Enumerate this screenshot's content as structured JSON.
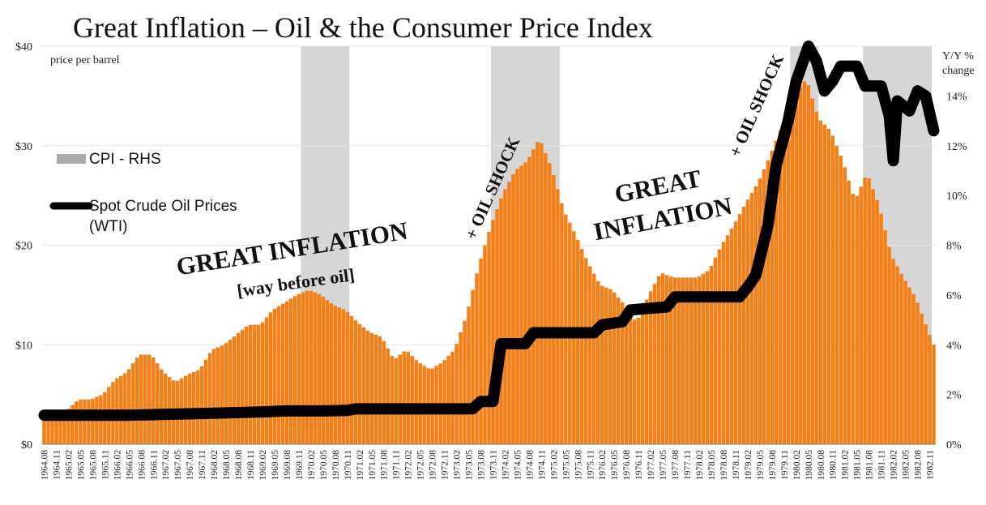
{
  "chart_data": {
    "type": "bar",
    "title": "Great Inflation – Oil & the Consumer Price Index",
    "left_axis_label": "price per barrel",
    "right_axis_label_line1": "Y/Y %",
    "right_axis_label_line2": "change",
    "left_ylim": [
      0,
      40
    ],
    "right_ylim": [
      0,
      16
    ],
    "left_ticks": [
      "$0",
      "$10",
      "$20",
      "$30",
      "$40"
    ],
    "left_tick_values": [
      0,
      10,
      20,
      30,
      40
    ],
    "right_ticks": [
      "0%",
      "2%",
      "4%",
      "6%",
      "8%",
      "10%",
      "12%",
      "14%"
    ],
    "right_tick_values": [
      0,
      2,
      4,
      6,
      8,
      10,
      12,
      14
    ],
    "x_start": "1964.08",
    "x_end": "1983.01",
    "x_tick_labels": [
      "1964.08",
      "1964.11",
      "1965.02",
      "1965.05",
      "1965.08",
      "1965.11",
      "1966.02",
      "1966.05",
      "1966.08",
      "1966.11",
      "1967.02",
      "1967.05",
      "1967.08",
      "1967.11",
      "1968.02",
      "1968.05",
      "1968.08",
      "1968.11",
      "1969.02",
      "1969.05",
      "1969.08",
      "1969.11",
      "1970.02",
      "1970.05",
      "1970.08",
      "1970.11",
      "1971.02",
      "1971.05",
      "1971.08",
      "1971.11",
      "1972.02",
      "1972.05",
      "1972.08",
      "1972.11",
      "1973.02",
      "1973.05",
      "1973.08",
      "1973.11",
      "1974.02",
      "1974.05",
      "1974.08",
      "1974.11",
      "1975.02",
      "1975.05",
      "1975.08",
      "1975.11",
      "1976.02",
      "1976.05",
      "1976.08",
      "1976.11",
      "1977.02",
      "1977.05",
      "1977.08",
      "1977.11",
      "1978.02",
      "1978.05",
      "1978.08",
      "1978.11",
      "1979.02",
      "1979.05",
      "1979.08",
      "1979.11",
      "1980.02",
      "1980.05",
      "1980.08",
      "1980.11",
      "1981.02",
      "1981.05",
      "1981.08",
      "1981.11",
      "1982.02",
      "1982.05",
      "1982.08",
      "1982.11"
    ],
    "recessions": [
      [
        "1969.12",
        "1970.11"
      ],
      [
        "1973.11",
        "1975.03"
      ],
      [
        "1980.01",
        "1980.07"
      ],
      [
        "1981.07",
        "1982.11"
      ]
    ],
    "legend": [
      "CPI - RHS",
      "Spot Crude Oil Prices",
      "(WTI)"
    ],
    "series": [
      {
        "name": "CPI - RHS",
        "axis": "right",
        "color": "#f47f16",
        "points": [
          [
            "1964.08",
            1.0
          ],
          [
            "1965.01",
            1.2
          ],
          [
            "1965.05",
            1.8
          ],
          [
            "1965.08",
            1.8
          ],
          [
            "1965.11",
            2.0
          ],
          [
            "1966.02",
            2.6
          ],
          [
            "1966.05",
            2.9
          ],
          [
            "1966.08",
            3.6
          ],
          [
            "1966.11",
            3.6
          ],
          [
            "1967.02",
            2.9
          ],
          [
            "1967.05",
            2.5
          ],
          [
            "1967.08",
            2.8
          ],
          [
            "1967.11",
            3.0
          ],
          [
            "1968.02",
            3.8
          ],
          [
            "1968.05",
            4.0
          ],
          [
            "1968.08",
            4.4
          ],
          [
            "1968.11",
            4.8
          ],
          [
            "1969.02",
            4.8
          ],
          [
            "1969.05",
            5.4
          ],
          [
            "1969.08",
            5.7
          ],
          [
            "1969.11",
            6.0
          ],
          [
            "1970.02",
            6.2
          ],
          [
            "1970.05",
            6.0
          ],
          [
            "1970.08",
            5.6
          ],
          [
            "1970.11",
            5.4
          ],
          [
            "1971.02",
            4.9
          ],
          [
            "1971.05",
            4.5
          ],
          [
            "1971.08",
            4.3
          ],
          [
            "1971.11",
            3.4
          ],
          [
            "1972.02",
            3.8
          ],
          [
            "1972.05",
            3.3
          ],
          [
            "1972.08",
            3.0
          ],
          [
            "1972.11",
            3.3
          ],
          [
            "1973.02",
            3.8
          ],
          [
            "1973.05",
            5.2
          ],
          [
            "1973.08",
            7.2
          ],
          [
            "1973.11",
            8.8
          ],
          [
            "1974.02",
            10.1
          ],
          [
            "1974.05",
            11.0
          ],
          [
            "1974.08",
            11.4
          ],
          [
            "1974.11",
            12.3
          ],
          [
            "1975.02",
            11.1
          ],
          [
            "1975.05",
            9.4
          ],
          [
            "1975.08",
            8.4
          ],
          [
            "1975.11",
            7.3
          ],
          [
            "1976.02",
            6.4
          ],
          [
            "1976.05",
            6.2
          ],
          [
            "1976.08",
            5.6
          ],
          [
            "1976.11",
            4.9
          ],
          [
            "1977.02",
            6.0
          ],
          [
            "1977.05",
            6.9
          ],
          [
            "1977.08",
            6.7
          ],
          [
            "1977.11",
            6.7
          ],
          [
            "1978.02",
            6.7
          ],
          [
            "1978.05",
            7.0
          ],
          [
            "1978.08",
            8.0
          ],
          [
            "1978.11",
            8.8
          ],
          [
            "1979.02",
            9.7
          ],
          [
            "1979.05",
            10.5
          ],
          [
            "1979.08",
            11.6
          ],
          [
            "1979.11",
            12.8
          ],
          [
            "1980.02",
            14.0
          ],
          [
            "1980.05",
            14.7
          ],
          [
            "1980.08",
            13.1
          ],
          [
            "1980.11",
            12.6
          ],
          [
            "1981.02",
            11.4
          ],
          [
            "1981.05",
            9.8
          ],
          [
            "1981.08",
            10.9
          ],
          [
            "1981.11",
            9.6
          ],
          [
            "1982.02",
            7.6
          ],
          [
            "1982.05",
            6.7
          ],
          [
            "1982.08",
            5.9
          ],
          [
            "1982.11",
            4.6
          ],
          [
            "1983.01",
            3.8
          ]
        ]
      },
      {
        "name": "Spot Crude Oil Prices (WTI)",
        "axis": "left",
        "color": "#000000",
        "points": [
          [
            "1964.08",
            2.92
          ],
          [
            "1966.05",
            2.92
          ],
          [
            "1967.01",
            3.0
          ],
          [
            "1968.01",
            3.1
          ],
          [
            "1969.02",
            3.25
          ],
          [
            "1969.08",
            3.35
          ],
          [
            "1970.06",
            3.35
          ],
          [
            "1970.11",
            3.4
          ],
          [
            "1971.01",
            3.55
          ],
          [
            "1973.06",
            3.56
          ],
          [
            "1973.08",
            4.3
          ],
          [
            "1973.11",
            4.3
          ],
          [
            "1974.01",
            10.1
          ],
          [
            "1974.07",
            10.1
          ],
          [
            "1974.09",
            11.2
          ],
          [
            "1975.12",
            11.2
          ],
          [
            "1976.02",
            12.0
          ],
          [
            "1976.07",
            12.3
          ],
          [
            "1976.09",
            13.5
          ],
          [
            "1977.06",
            13.8
          ],
          [
            "1977.08",
            14.8
          ],
          [
            "1978.12",
            14.8
          ],
          [
            "1979.02",
            15.8
          ],
          [
            "1979.04",
            17.0
          ],
          [
            "1979.07",
            22.0
          ],
          [
            "1979.09",
            28.0
          ],
          [
            "1979.12",
            32.5
          ],
          [
            "1980.02",
            36.5
          ],
          [
            "1980.05",
            40.0
          ],
          [
            "1980.07",
            38.5
          ],
          [
            "1980.09",
            35.5
          ],
          [
            "1980.11",
            36.5
          ],
          [
            "1981.01",
            38.0
          ],
          [
            "1981.05",
            38.0
          ],
          [
            "1981.07",
            36.0
          ],
          [
            "1981.11",
            36.0
          ],
          [
            "1982.01",
            33.0
          ],
          [
            "1982.02",
            28.5
          ],
          [
            "1982.03",
            34.5
          ],
          [
            "1982.06",
            33.5
          ],
          [
            "1982.08",
            35.5
          ],
          [
            "1982.10",
            35.0
          ],
          [
            "1982.12",
            31.5
          ]
        ]
      }
    ],
    "annotations": [
      {
        "id": "great_inflation_1",
        "text": "GREAT INFLATION"
      },
      {
        "id": "way_before_oil",
        "text": "[way before oil]"
      },
      {
        "id": "oil_shock_1",
        "text": "+ OIL SHOCK"
      },
      {
        "id": "great",
        "text": "GREAT"
      },
      {
        "id": "inflation",
        "text": "INFLATION"
      },
      {
        "id": "oil_shock_2",
        "text": "+ OIL SHOCK"
      }
    ],
    "grid": true,
    "legend_position": "left"
  }
}
